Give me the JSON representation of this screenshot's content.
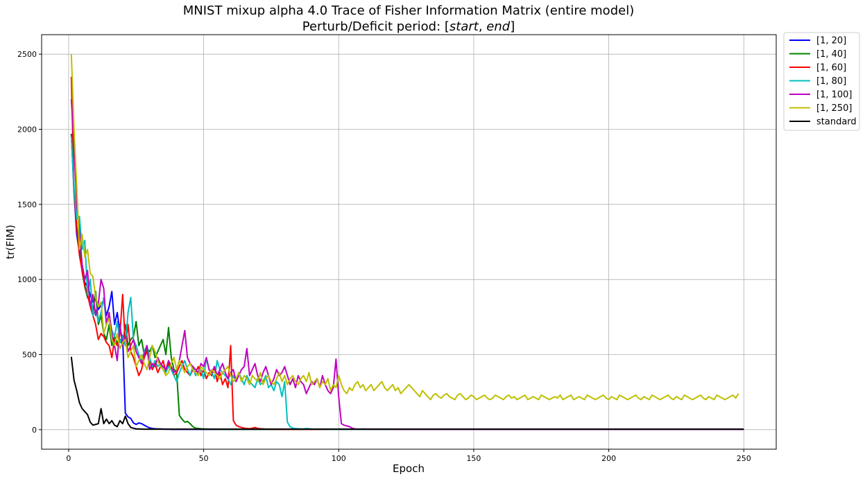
{
  "chart_data": {
    "type": "line",
    "title_line1": "MNIST mixup alpha 4.0 Trace of Fisher Information Matrix (entire model)",
    "title_line2_prefix": "Perturb/Deficit period: [",
    "title_line2_start": "start",
    "title_line2_sep": ", ",
    "title_line2_end": "end",
    "title_line2_suffix": "]",
    "xlabel": "Epoch",
    "ylabel": "tr(FIM)",
    "xlim": [
      -10,
      262
    ],
    "ylim": [
      -130,
      2630
    ],
    "xticks": [
      0,
      50,
      100,
      150,
      200,
      250
    ],
    "yticks": [
      0,
      500,
      1000,
      1500,
      2000,
      2500
    ],
    "grid": true,
    "legend_position": "outside-top-right",
    "series": [
      {
        "name": "[1, 20]",
        "color": "#0000ff",
        "end_epoch": 20,
        "pre_values": [
          1970,
          1580,
          1300,
          1180,
          1080,
          980,
          950,
          900,
          850,
          870,
          800,
          830,
          860,
          760,
          820,
          920,
          700,
          780,
          650,
          620
        ],
        "post_values": [
          110,
          85,
          75,
          45,
          35,
          45,
          40,
          30,
          20,
          12,
          8,
          6,
          5,
          5,
          4,
          3,
          3,
          2,
          2,
          2
        ]
      },
      {
        "name": "[1, 40]",
        "color": "#008000",
        "end_epoch": 40,
        "pre_values": [
          1970,
          1600,
          1350,
          1220,
          1050,
          950,
          880,
          850,
          780,
          920,
          700,
          760,
          640,
          600,
          700,
          560,
          620,
          580,
          600,
          560,
          700,
          560,
          600,
          620,
          720,
          560,
          600,
          500,
          540,
          520,
          560,
          480,
          520,
          560,
          600,
          500,
          680,
          480,
          400,
          380
        ],
        "post_values": [
          95,
          70,
          50,
          55,
          40,
          20,
          10,
          8,
          6,
          5,
          4,
          4,
          3,
          3,
          3,
          2,
          2,
          2,
          2,
          2
        ]
      },
      {
        "name": "[1, 60]",
        "color": "#ff0000",
        "end_epoch": 60,
        "pre_values": [
          2350,
          1600,
          1350,
          1160,
          1060,
          960,
          900,
          820,
          760,
          700,
          600,
          640,
          620,
          580,
          560,
          480,
          600,
          560,
          640,
          900,
          560,
          700,
          520,
          480,
          420,
          360,
          400,
          480,
          520,
          460,
          400,
          440,
          380,
          420,
          460,
          380,
          440,
          400,
          360,
          380,
          420,
          460,
          400,
          380,
          360,
          400,
          380,
          420,
          360,
          400,
          340,
          380,
          360,
          420,
          320,
          380,
          300,
          340,
          280,
          560
        ],
        "post_values": [
          60,
          30,
          20,
          15,
          10,
          8,
          6,
          10,
          15,
          8,
          6,
          5,
          4,
          4,
          3,
          3,
          3,
          2,
          2,
          2
        ]
      },
      {
        "name": "[1, 80]",
        "color": "#00bfbf",
        "end_epoch": 80,
        "pre_values": [
          1950,
          1620,
          1400,
          1420,
          1200,
          1260,
          900,
          1000,
          760,
          800,
          720,
          780,
          880,
          700,
          760,
          660,
          620,
          720,
          580,
          620,
          560,
          780,
          880,
          600,
          560,
          500,
          460,
          520,
          560,
          480,
          420,
          460,
          420,
          440,
          400,
          380,
          420,
          400,
          360,
          320,
          380,
          420,
          460,
          400,
          360,
          420,
          360,
          380,
          400,
          340,
          480,
          400,
          380,
          340,
          460,
          400,
          380,
          360,
          340,
          300,
          360,
          320,
          380,
          340,
          300,
          360,
          320,
          300,
          280,
          340,
          300,
          320,
          360,
          280,
          300,
          260,
          320,
          300,
          220,
          320
        ],
        "post_values": [
          50,
          20,
          10,
          8,
          6,
          5,
          5,
          8,
          6,
          4,
          4,
          3,
          3,
          3,
          3,
          2,
          2,
          2,
          2,
          2
        ]
      },
      {
        "name": "[1, 100]",
        "color": "#bf00bf",
        "end_epoch": 100,
        "pre_values": [
          2200,
          1900,
          1500,
          1320,
          1100,
          1000,
          1060,
          820,
          900,
          760,
          840,
          1000,
          940,
          700,
          780,
          640,
          560,
          460,
          700,
          560,
          620,
          520,
          560,
          600,
          520,
          480,
          440,
          500,
          560,
          400,
          440,
          420,
          480,
          440,
          420,
          400,
          460,
          420,
          380,
          400,
          460,
          560,
          660,
          480,
          440,
          420,
          400,
          380,
          440,
          420,
          480,
          400,
          380,
          420,
          360,
          400,
          440,
          380,
          340,
          380,
          400,
          320,
          360,
          400,
          420,
          540,
          360,
          400,
          440,
          360,
          320,
          380,
          420,
          360,
          300,
          340,
          400,
          360,
          380,
          420,
          360,
          300,
          340,
          280,
          360,
          320,
          300,
          240,
          280,
          320,
          300,
          340,
          280,
          360,
          300,
          260,
          240,
          280,
          470,
          220
        ],
        "post_values": [
          40,
          30,
          25,
          20,
          10,
          5,
          3,
          3,
          5,
          3,
          3,
          3,
          3,
          3,
          3,
          3,
          3,
          3,
          3,
          3
        ]
      },
      {
        "name": "[1, 250]",
        "color": "#bfbf00",
        "pre_values": [
          2500,
          2000,
          1620,
          1200,
          1300,
          1150,
          1200,
          1040,
          1020,
          880,
          820,
          850,
          640,
          700,
          740,
          600,
          560,
          640,
          540,
          580,
          600,
          480,
          520,
          560,
          420,
          460,
          500,
          440,
          400,
          480,
          560,
          520,
          460,
          420,
          400,
          360,
          380,
          440,
          480,
          400,
          460,
          420,
          380,
          420,
          440,
          400,
          380,
          360,
          420,
          400,
          380,
          360,
          400,
          380,
          360,
          340,
          380,
          400,
          420,
          360,
          320,
          340,
          380,
          320,
          360,
          340,
          300,
          360,
          340,
          320,
          380,
          300,
          340,
          360,
          320,
          300,
          340,
          380,
          320,
          360,
          300,
          340,
          360,
          320,
          300,
          340,
          360,
          320,
          380,
          300,
          320,
          340,
          280,
          320,
          300,
          340,
          260,
          300,
          280,
          360,
          300,
          260,
          240,
          280,
          260,
          300,
          320,
          280,
          300,
          260,
          280,
          300,
          260,
          280,
          300,
          320,
          280,
          260,
          280,
          300,
          260,
          280,
          240,
          260,
          280,
          300,
          280,
          260,
          240,
          220,
          260,
          240,
          220,
          200,
          230,
          240,
          220,
          210,
          230,
          240,
          220,
          210,
          200,
          230,
          240,
          220,
          200,
          210,
          230,
          220,
          200,
          210,
          220,
          230,
          210,
          200,
          210,
          230,
          220,
          210,
          200,
          220,
          230,
          210,
          220,
          200,
          210,
          220,
          230,
          200,
          210,
          220,
          210,
          200,
          230,
          220,
          210,
          200,
          210,
          220,
          210,
          230,
          200,
          210,
          220,
          230,
          200,
          210,
          220,
          210,
          200,
          230,
          220,
          210,
          200,
          210,
          220,
          230,
          210,
          200,
          220,
          210,
          200,
          230,
          220,
          210,
          200,
          210,
          220,
          230,
          210,
          200,
          220,
          210,
          200,
          230,
          220,
          210,
          200,
          210,
          220,
          230,
          210,
          200,
          220,
          210,
          200,
          230,
          220,
          210,
          200,
          210,
          220,
          230,
          210,
          200,
          220,
          210,
          200,
          230,
          220,
          210,
          200,
          210,
          220,
          230,
          210,
          240
        ],
        "post_values": []
      },
      {
        "name": "standard",
        "color": "#000000",
        "pre_values": [
          485,
          330,
          260,
          180,
          140,
          120,
          100,
          50,
          30,
          35,
          40,
          140,
          40,
          70,
          40,
          60,
          30,
          20,
          60,
          40,
          90,
          40,
          15,
          10,
          5,
          5,
          4,
          3,
          3,
          3,
          3,
          3,
          3,
          3,
          3,
          3,
          3,
          3,
          3,
          3,
          3,
          3,
          3,
          3,
          3,
          3,
          3,
          3,
          3,
          3,
          3,
          3,
          3,
          3,
          3,
          3,
          3,
          3,
          3,
          3,
          3,
          3,
          3,
          3,
          3,
          3,
          3,
          3,
          3,
          3,
          3,
          3,
          3,
          3,
          3,
          3,
          3,
          3,
          3,
          3,
          3,
          3,
          3,
          3,
          3,
          3,
          3,
          3,
          3,
          3,
          3,
          3,
          3,
          3,
          3,
          3,
          3,
          3,
          3,
          3,
          3,
          3,
          3,
          3,
          3,
          3,
          3,
          3,
          3,
          3,
          3,
          3,
          3,
          3,
          3,
          3,
          3,
          3,
          3,
          3,
          3,
          3,
          3,
          3,
          3,
          3,
          3,
          3,
          3,
          3,
          3,
          3,
          3,
          3,
          3,
          3,
          3,
          3,
          3,
          3,
          3,
          3,
          3,
          3,
          3,
          3,
          3,
          3,
          3,
          3,
          3,
          3,
          3,
          3,
          3,
          3,
          3,
          3,
          3,
          3,
          3,
          3,
          3,
          3,
          3,
          3,
          3,
          3,
          3,
          3,
          3,
          3,
          3,
          3,
          3,
          3,
          3,
          3,
          3,
          3,
          3,
          3,
          3,
          3,
          3,
          3,
          3,
          3,
          3,
          3,
          3,
          3,
          3,
          3,
          3,
          3,
          3,
          3,
          3,
          3,
          3,
          3,
          3,
          3,
          3,
          3,
          3,
          3,
          3,
          3,
          3,
          3,
          3,
          3,
          3,
          3,
          3,
          3,
          3,
          3,
          3,
          3,
          3,
          3,
          3,
          3,
          3,
          3,
          3,
          3,
          3,
          3,
          3,
          3,
          3,
          3,
          3,
          3,
          3,
          3,
          3,
          3,
          3,
          3,
          3,
          3,
          3,
          3,
          3,
          3
        ],
        "post_values": []
      }
    ]
  }
}
